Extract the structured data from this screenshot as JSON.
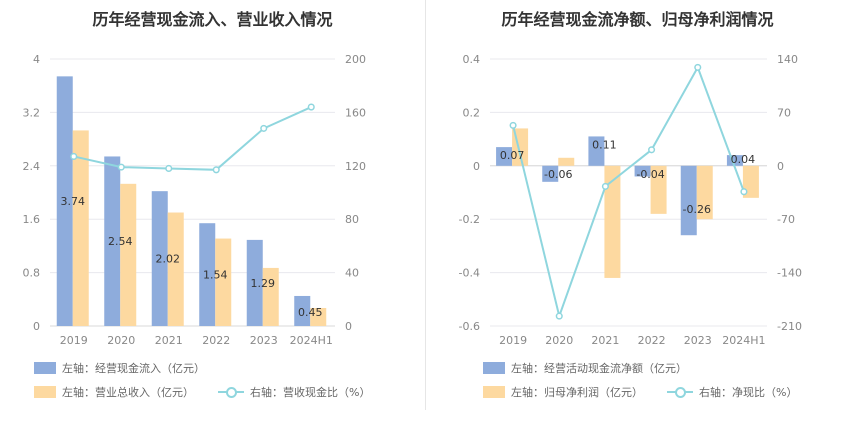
{
  "colors": {
    "bar_primary": "#8eacdc",
    "bar_secondary": "#fdd9a0",
    "line": "#8fd6de",
    "grid": "#e8e8ee",
    "tick": "#888888"
  },
  "chart_data": [
    {
      "type": "bar",
      "title": "历年经营现金流入、营业收入情况",
      "categories": [
        "2019",
        "2020",
        "2021",
        "2022",
        "2023",
        "2024H1"
      ],
      "left_axis": {
        "ticks": [
          "0",
          "0.8",
          "1.6",
          "2.4",
          "3.2",
          "4"
        ],
        "ylim": [
          0,
          4
        ]
      },
      "right_axis": {
        "ticks": [
          "0",
          "40",
          "80",
          "120",
          "160",
          "200"
        ],
        "ylim": [
          0,
          200
        ]
      },
      "series": [
        {
          "name": "左轴：经营现金流入（亿元）",
          "kind": "bar",
          "axis": "left",
          "values": [
            3.74,
            2.54,
            2.02,
            1.54,
            1.29,
            0.45
          ],
          "labels": [
            "3.74",
            "2.54",
            "2.02",
            "1.54",
            "1.29",
            "0.45"
          ]
        },
        {
          "name": "左轴：营业总收入（亿元）",
          "kind": "bar",
          "axis": "left",
          "values": [
            2.93,
            2.13,
            1.7,
            1.31,
            0.87,
            0.27
          ]
        },
        {
          "name": "右轴：营收现金比（%）",
          "kind": "line",
          "axis": "right",
          "values": [
            127,
            119,
            118,
            117,
            148,
            164
          ]
        }
      ]
    },
    {
      "type": "bar",
      "title": "历年经营现金流净额、归母净利润情况",
      "categories": [
        "2019",
        "2020",
        "2021",
        "2022",
        "2023",
        "2024H1"
      ],
      "left_axis": {
        "ticks": [
          "-0.6",
          "-0.4",
          "-0.2",
          "0",
          "0.2",
          "0.4"
        ],
        "ylim": [
          -0.6,
          0.4
        ]
      },
      "right_axis": {
        "ticks": [
          "-210",
          "-140",
          "-70",
          "0",
          "70",
          "140"
        ],
        "ylim": [
          -210,
          140
        ]
      },
      "series": [
        {
          "name": "左轴：经营活动现金流净额（亿元）",
          "kind": "bar",
          "axis": "left",
          "values": [
            0.07,
            -0.06,
            0.11,
            -0.04,
            -0.26,
            0.04
          ],
          "labels": [
            "0.07",
            "-0.06",
            "0.11",
            "-0.04",
            "-0.26",
            "0.04"
          ]
        },
        {
          "name": "左轴：归母净利润（亿元）",
          "kind": "bar",
          "axis": "left",
          "values": [
            0.14,
            0.03,
            -0.42,
            -0.18,
            -0.2,
            -0.12
          ]
        },
        {
          "name": "右轴：净现比（%）",
          "kind": "line",
          "axis": "right",
          "values": [
            53,
            -197,
            -27,
            21,
            129,
            -34
          ]
        }
      ]
    }
  ]
}
